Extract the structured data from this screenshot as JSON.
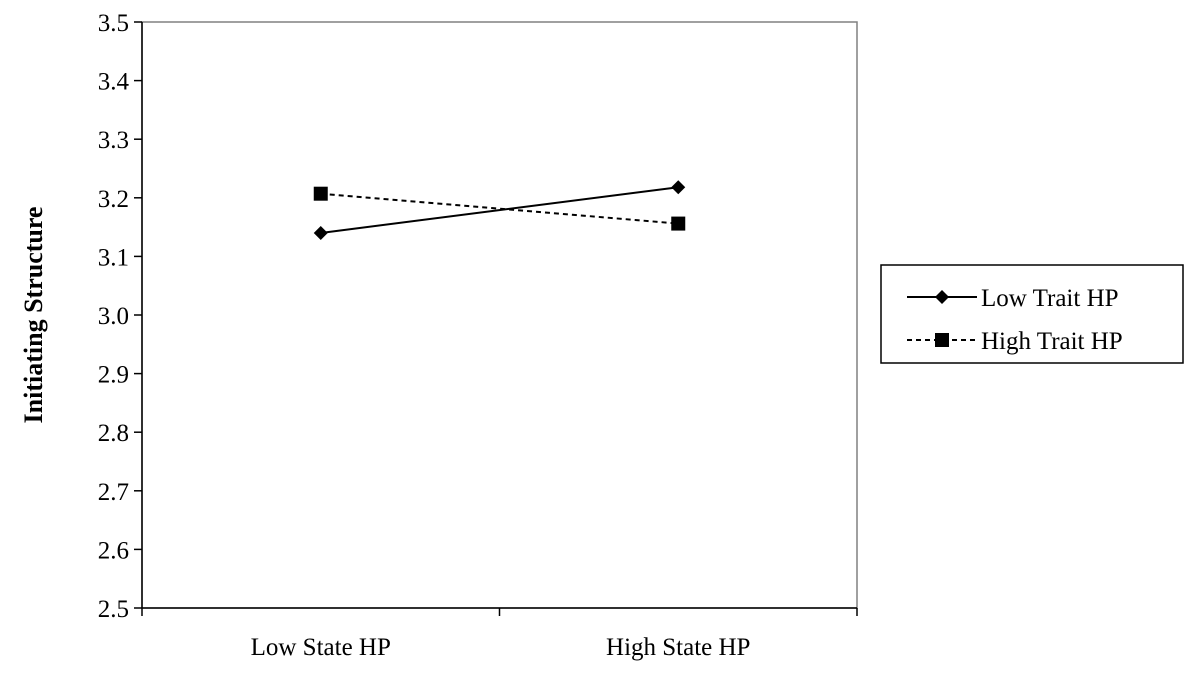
{
  "chart_data": {
    "type": "line",
    "title": "",
    "xlabel": "",
    "ylabel": "Initiating Structure",
    "categories": [
      "Low State HP",
      "High State HP"
    ],
    "ylim": [
      2.5,
      3.5
    ],
    "yticks": [
      "2.5",
      "2.6",
      "2.7",
      "2.8",
      "2.9",
      "3.0",
      "3.1",
      "3.2",
      "3.3",
      "3.4",
      "3.5"
    ],
    "grid": false,
    "legend_position": "right",
    "series": [
      {
        "name": "Low Trait HP",
        "values": [
          3.14,
          3.218
        ],
        "marker": "diamond",
        "line_style": "solid",
        "color": "#000000"
      },
      {
        "name": "High Trait HP",
        "values": [
          3.207,
          3.156
        ],
        "marker": "square",
        "line_style": "dashed",
        "color": "#000000"
      }
    ]
  }
}
